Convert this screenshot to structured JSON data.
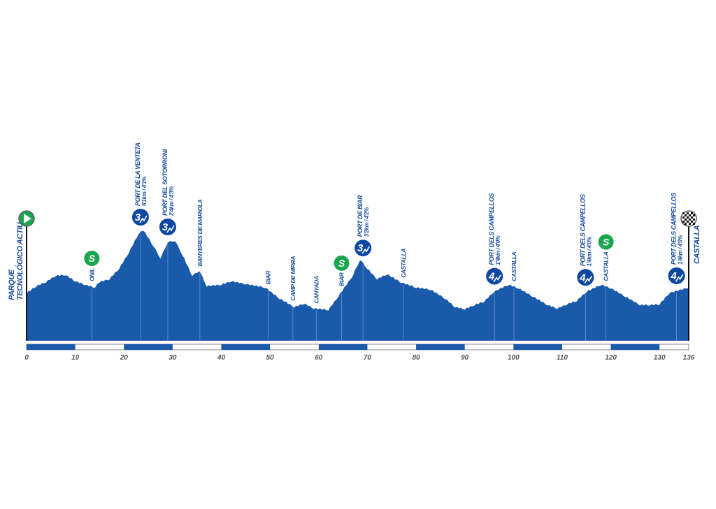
{
  "chart_data": {
    "type": "area",
    "title": "",
    "xlabel": "",
    "ylabel": "",
    "xlim": [
      0,
      136
    ],
    "x_ticks": [
      "0",
      "10",
      "20",
      "30",
      "40",
      "50",
      "60",
      "70",
      "80",
      "90",
      "100",
      "110",
      "120",
      "130",
      "136"
    ],
    "x_tick_values": [
      0,
      10,
      20,
      30,
      40,
      50,
      60,
      70,
      80,
      90,
      100,
      110,
      120,
      130,
      136
    ],
    "grid": false,
    "elevation_profile_relative": [
      [
        0,
        68
      ],
      [
        2,
        78
      ],
      [
        4,
        84
      ],
      [
        6,
        93
      ],
      [
        8,
        94
      ],
      [
        10,
        85
      ],
      [
        12,
        80
      ],
      [
        14,
        76
      ],
      [
        15,
        84
      ],
      [
        17,
        88
      ],
      [
        19,
        103
      ],
      [
        21,
        126
      ],
      [
        23,
        153
      ],
      [
        24,
        158
      ],
      [
        26,
        136
      ],
      [
        27.5,
        118
      ],
      [
        29,
        141
      ],
      [
        30.5,
        143
      ],
      [
        32,
        123
      ],
      [
        34,
        93
      ],
      [
        35.5,
        100
      ],
      [
        37,
        78
      ],
      [
        40,
        80
      ],
      [
        42,
        85
      ],
      [
        45,
        81
      ],
      [
        49,
        76
      ],
      [
        52,
        60
      ],
      [
        55,
        48
      ],
      [
        57,
        53
      ],
      [
        59,
        46
      ],
      [
        62,
        44
      ],
      [
        64,
        63
      ],
      [
        67,
        93
      ],
      [
        68.5,
        116
      ],
      [
        70,
        103
      ],
      [
        72,
        88
      ],
      [
        74,
        95
      ],
      [
        77,
        83
      ],
      [
        80,
        76
      ],
      [
        83,
        73
      ],
      [
        86,
        60
      ],
      [
        88,
        48
      ],
      [
        90,
        45
      ],
      [
        92,
        51
      ],
      [
        94,
        56
      ],
      [
        96,
        70
      ],
      [
        99,
        80
      ],
      [
        101,
        75
      ],
      [
        104,
        63
      ],
      [
        107,
        51
      ],
      [
        109,
        46
      ],
      [
        111,
        52
      ],
      [
        113,
        57
      ],
      [
        115,
        70
      ],
      [
        118,
        80
      ],
      [
        120,
        75
      ],
      [
        123,
        63
      ],
      [
        126,
        51
      ],
      [
        128,
        51
      ],
      [
        130,
        52
      ],
      [
        132,
        68
      ],
      [
        136,
        76
      ]
    ],
    "start": {
      "km": 0,
      "label_line1": "PARQUE",
      "label_line2": "TECNOLÓGICO ACTIU",
      "color": "#1aa550"
    },
    "finish": {
      "km": 136,
      "label": "CASTALLA"
    },
    "waypoints": [
      {
        "km": 13.4,
        "label": "ONIL"
      },
      {
        "km": 35.6,
        "label": "BANYERES DE MARIOLA"
      },
      {
        "km": 49.6,
        "label": "BIAR"
      },
      {
        "km": 54.7,
        "label": "CAMP DE MIRRA"
      },
      {
        "km": 59.5,
        "label": "CANYADA"
      },
      {
        "km": 64.7,
        "label": "BIAR"
      },
      {
        "km": 77.4,
        "label": "CASTALLA"
      },
      {
        "km": 100.1,
        "label": "CASTALLA"
      },
      {
        "km": 119,
        "label": "CASTALLA"
      }
    ],
    "sprints": [
      {
        "km": 13.4,
        "symbol": "S"
      },
      {
        "km": 64.7,
        "symbol": "S"
      },
      {
        "km": 119,
        "symbol": "S"
      }
    ],
    "climbs": [
      {
        "km": 23.4,
        "name": "PORT DE LA VENTETA",
        "detail": "6'1km / 4'1%",
        "category": "3"
      },
      {
        "km": 29,
        "name": "PORT DEL SOTORRONI",
        "detail": "2'4km / 4'3%",
        "category": "3"
      },
      {
        "km": 69.1,
        "name": "PORT DE BIAR",
        "detail": "3'2km / 4'2%",
        "category": "3"
      },
      {
        "km": 96.1,
        "name": "PORT DELS CAMPELLOS",
        "detail": "1'4km / 4'0%",
        "category": "4"
      },
      {
        "km": 114.8,
        "name": "PORT DELS CAMPELLOS",
        "detail": "1'4km / 4'0%",
        "category": "4"
      },
      {
        "km": 133.5,
        "name": "PORT DELS CAMPELLOS",
        "detail": "1'4km / 4'0%",
        "category": "4"
      }
    ],
    "colors": {
      "profile": "#1a5aab",
      "label": "#1a4fa0",
      "climb_icon": "#0d47a1",
      "sprint": "#1aa550",
      "axis": "#555555"
    }
  }
}
